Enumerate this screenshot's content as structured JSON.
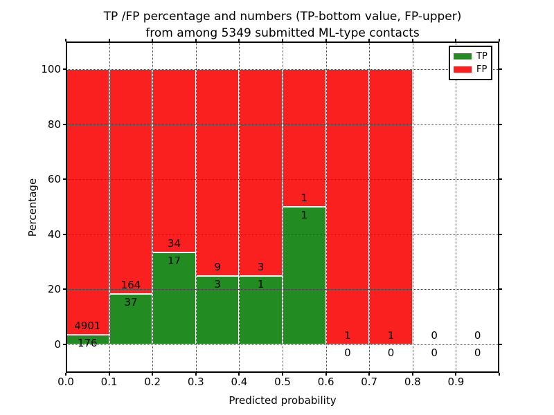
{
  "figure": {
    "title_line1": "TP /FP percentage and numbers (TP-bottom value, FP-upper)",
    "title_line2": "from among 5349 submitted ML-type contacts"
  },
  "axes": {
    "xlabel": "Predicted probability",
    "ylabel": "Percentage",
    "x_ticklabels": [
      "0.0",
      "0.1",
      "0.2",
      "0.3",
      "0.4",
      "0.5",
      "0.6",
      "0.7",
      "0.8",
      "0.9"
    ],
    "y_ticklabels": [
      "0",
      "20",
      "40",
      "60",
      "80",
      "100"
    ]
  },
  "legend": {
    "items": [
      {
        "label": "TP",
        "color": "#228b22"
      },
      {
        "label": "FP",
        "color": "#fb2020"
      }
    ]
  },
  "colors": {
    "tp": "#228b22",
    "fp": "#fb2020",
    "grid": "#444444",
    "frame": "#000000",
    "background": "#ffffff"
  },
  "chart_data": {
    "type": "bar",
    "stacking": "percent",
    "title": "TP /FP percentage and numbers (TP-bottom value, FP-upper) from among 5349 submitted ML-type contacts",
    "xlabel": "Predicted probability",
    "ylabel": "Percentage",
    "xlim": [
      0.0,
      1.0
    ],
    "ylim": [
      -10,
      110
    ],
    "x_ticks": [
      0.0,
      0.1,
      0.2,
      0.3,
      0.4,
      0.5,
      0.6,
      0.7,
      0.8,
      0.9
    ],
    "y_ticks": [
      0,
      20,
      40,
      60,
      80,
      100
    ],
    "grid": true,
    "legend_position": "upper right",
    "bin_width": 0.1,
    "total_contacts": 5349,
    "series": [
      {
        "name": "TP",
        "color": "#228b22",
        "counts": [
          176,
          37,
          17,
          3,
          1,
          1,
          0,
          0,
          0,
          0
        ]
      },
      {
        "name": "FP",
        "color": "#fb2020",
        "counts": [
          4901,
          164,
          34,
          9,
          3,
          1,
          1,
          1,
          0,
          0
        ]
      }
    ],
    "bins": [
      {
        "x0": 0.0,
        "x1": 0.1,
        "tp": 176,
        "fp": 4901,
        "tp_pct": 3.47
      },
      {
        "x0": 0.1,
        "x1": 0.2,
        "tp": 37,
        "fp": 164,
        "tp_pct": 18.41
      },
      {
        "x0": 0.2,
        "x1": 0.3,
        "tp": 17,
        "fp": 34,
        "tp_pct": 33.33
      },
      {
        "x0": 0.3,
        "x1": 0.4,
        "tp": 3,
        "fp": 9,
        "tp_pct": 25.0
      },
      {
        "x0": 0.4,
        "x1": 0.5,
        "tp": 1,
        "fp": 3,
        "tp_pct": 25.0
      },
      {
        "x0": 0.5,
        "x1": 0.6,
        "tp": 1,
        "fp": 1,
        "tp_pct": 50.0
      },
      {
        "x0": 0.6,
        "x1": 0.7,
        "tp": 0,
        "fp": 1,
        "tp_pct": 0.0
      },
      {
        "x0": 0.7,
        "x1": 0.8,
        "tp": 0,
        "fp": 1,
        "tp_pct": 0.0
      },
      {
        "x0": 0.8,
        "x1": 0.9,
        "tp": 0,
        "fp": 0,
        "tp_pct": null
      },
      {
        "x0": 0.9,
        "x1": 1.0,
        "tp": 0,
        "fp": 0,
        "tp_pct": null
      }
    ]
  }
}
